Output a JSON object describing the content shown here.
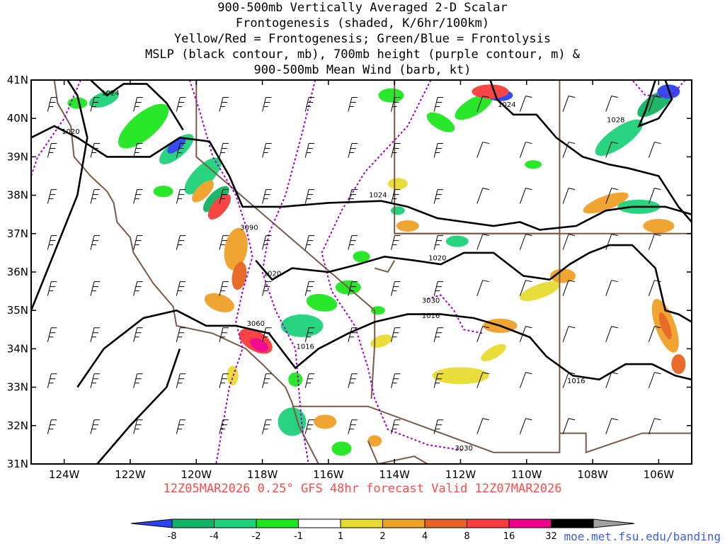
{
  "title_lines": [
    "900-500mb Vertically Averaged 2-D Scalar",
    "Frontogenesis (shaded, K/6hr/100km)",
    "Yellow/Red = Frontogenesis;  Green/Blue = Frontolysis",
    "MSLP (black contour, mb), 700mb height (purple contour, m) &",
    "900-500mb Mean Wind (barb, kt)"
  ],
  "valid_text": "12Z05MAR2026 0.25° GFS 48hr forecast Valid 12Z07MAR2026",
  "website": "moe.met.fsu.edu/banding",
  "colors": {
    "cb_colors": [
      "#2a43f0",
      "#10b464",
      "#1ed27a",
      "#1ee61e",
      "#ffffff",
      "#e8dc32",
      "#f0a028",
      "#e8641e",
      "#fa3c3c",
      "#f0008c",
      "#000000",
      "#a0a0a0"
    ],
    "mslp": "#000000",
    "height": "#a000c8",
    "coast": "#7a5a46",
    "valid": "#ff4a4a",
    "website": "#3a5ee0"
  },
  "chart_data": {
    "type": "heatmap",
    "map_extent": {
      "lon": [
        -125,
        -105
      ],
      "lat": [
        31,
        41
      ]
    },
    "x_ticks": [
      "124W",
      "122W",
      "120W",
      "118W",
      "116W",
      "114W",
      "112W",
      "110W",
      "108W",
      "106W"
    ],
    "x_tick_lons": [
      -124,
      -122,
      -120,
      -118,
      -116,
      -114,
      -112,
      -110,
      -108,
      -106
    ],
    "y_ticks": [
      "31N",
      "32N",
      "33N",
      "34N",
      "35N",
      "36N",
      "37N",
      "38N",
      "39N",
      "40N",
      "41N"
    ],
    "y_tick_lats": [
      31,
      32,
      33,
      34,
      35,
      36,
      37,
      38,
      39,
      40,
      41
    ],
    "colorbar_ticks": [
      "-8",
      "-4",
      "-2",
      "-1",
      "1",
      "2",
      "4",
      "8",
      "16",
      "32"
    ],
    "mslp_labels": [
      {
        "text": "1024",
        "lon": -122.6,
        "lat": 40.6
      },
      {
        "text": "1020",
        "lon": -123.8,
        "lat": 39.6
      },
      {
        "text": "1024",
        "lon": -114.5,
        "lat": 37.95
      },
      {
        "text": "1020",
        "lon": -117.7,
        "lat": 35.9
      },
      {
        "text": "1020",
        "lon": -112.7,
        "lat": 36.3
      },
      {
        "text": "1024",
        "lon": -110.6,
        "lat": 40.3
      },
      {
        "text": "1028",
        "lon": -107.3,
        "lat": 39.9
      },
      {
        "text": "1016",
        "lon": -112.9,
        "lat": 34.8
      },
      {
        "text": "1016",
        "lon": -116.7,
        "lat": 34.0
      },
      {
        "text": "1016",
        "lon": -108.5,
        "lat": 33.1
      }
    ],
    "height_labels": [
      {
        "text": "3090",
        "lon": -118.4,
        "lat": 37.1
      },
      {
        "text": "3060",
        "lon": -118.2,
        "lat": 34.6
      },
      {
        "text": "3030",
        "lon": -112.9,
        "lat": 35.2
      },
      {
        "text": "3030",
        "lon": -111.9,
        "lat": 31.35
      }
    ]
  }
}
